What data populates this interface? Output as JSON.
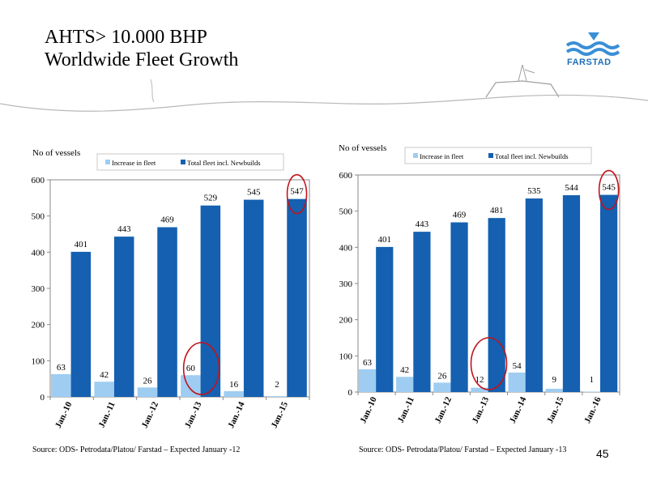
{
  "title_line1": "AHTS> 10.000 BHP",
  "title_line2": "Worldwide Fleet Growth",
  "logo_text": "FARSTAD",
  "page_number": "45",
  "colors": {
    "increase": "#9fcdf2",
    "total": "#1560b0",
    "circle": "#c0141c"
  },
  "chart_data": [
    {
      "type": "bar",
      "ylabel": "No of vessels",
      "ylim": [
        0,
        600
      ],
      "yticks": [
        0,
        100,
        200,
        300,
        400,
        500,
        600
      ],
      "categories": [
        "Jan.-10",
        "Jan.-11",
        "Jan.-12",
        "Jan.-13",
        "Jan.-14",
        "Jan.-15"
      ],
      "series": [
        {
          "name": "Increase in fleet",
          "values": [
            63,
            42,
            26,
            60,
            16,
            2
          ]
        },
        {
          "name": "Total fleet incl. Newbuilds",
          "values": [
            401,
            443,
            469,
            529,
            545,
            547
          ]
        }
      ],
      "highlights": [
        {
          "series": 0,
          "index": 3
        },
        {
          "series": 1,
          "index": 5
        }
      ],
      "source": "Source: ODS- Petrodata/Platou/ Farstad – Expected January -12"
    },
    {
      "type": "bar",
      "ylabel": "No of vessels",
      "ylim": [
        0,
        600
      ],
      "yticks": [
        0,
        100,
        200,
        300,
        400,
        500,
        600
      ],
      "categories": [
        "Jan.-10",
        "Jan.-11",
        "Jan.-12",
        "Jan.-13",
        "Jan.-14",
        "Jan.-15",
        "Jan.-16"
      ],
      "series": [
        {
          "name": "Increase in fleet",
          "values": [
            63,
            42,
            26,
            12,
            54,
            9,
            1
          ]
        },
        {
          "name": "Total fleet incl. Newbuilds",
          "values": [
            401,
            443,
            469,
            481,
            535,
            544,
            545
          ]
        }
      ],
      "highlights": [
        {
          "series": 0,
          "index": 3
        },
        {
          "series": 1,
          "index": 6
        }
      ],
      "source": "Source: ODS- Petrodata/Platou/ Farstad – Expected January -13"
    }
  ]
}
